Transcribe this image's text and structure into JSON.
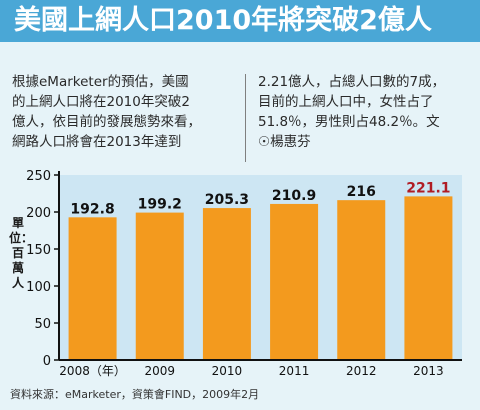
{
  "title": "美國上網人口2010年將突破2億人",
  "intro_left": [
    "根據eMarketer的預估，美國",
    "的上網人口將在2010年突破2",
    "億人，依目前的發展態勢來看，",
    "網路人口將會在2013年達到"
  ],
  "intro_right": [
    "2.21億人，占總人口數的7成，",
    "目前的上網人口中，女性占了",
    "51.8％，男性則占48.2％。文",
    "☉楊惠芬"
  ],
  "source": "資料來源：eMarketer，資策會FIND，2009年2月",
  "colors": {
    "header": "#4aa7d6",
    "bar": "#f39a1e",
    "highlight_label": "#b01c24",
    "background": "#e6f3f8"
  },
  "chart_data": {
    "type": "bar",
    "categories": [
      "2008（年）",
      "2009",
      "2010",
      "2011",
      "2012",
      "2013"
    ],
    "values": [
      192.8,
      199.2,
      205.3,
      210.9,
      216,
      221.1
    ],
    "value_labels": [
      "192.8",
      "199.2",
      "205.3",
      "210.9",
      "216",
      "221.1"
    ],
    "highlight_index": 5,
    "ylabel": "單位：百萬人",
    "xlabel": "",
    "ylim": [
      0,
      250
    ],
    "yticks": [
      0,
      50,
      100,
      150,
      200,
      250
    ],
    "grid": false,
    "legend": false
  }
}
